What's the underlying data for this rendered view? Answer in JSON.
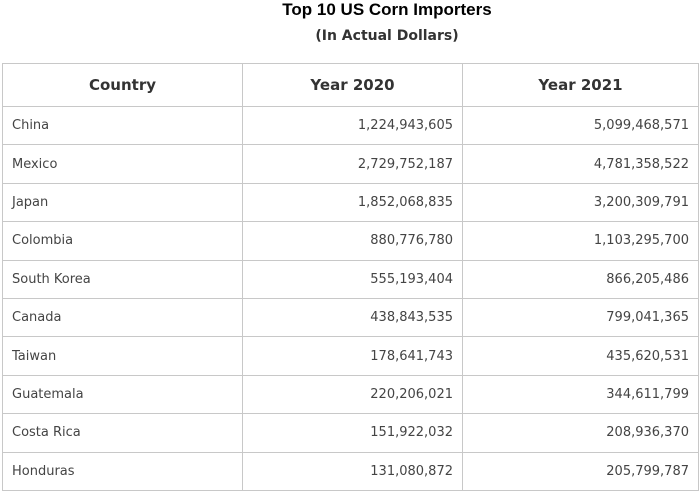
{
  "title": "Top 10 US Corn Importers",
  "subtitle": "(In Actual Dollars)",
  "table": {
    "headers": [
      "Country",
      "Year 2020",
      "Year 2021"
    ],
    "rows": [
      {
        "country": "China",
        "y2020": "1,224,943,605",
        "y2021": "5,099,468,571"
      },
      {
        "country": "Mexico",
        "y2020": "2,729,752,187",
        "y2021": "4,781,358,522"
      },
      {
        "country": "Japan",
        "y2020": "1,852,068,835",
        "y2021": "3,200,309,791"
      },
      {
        "country": "Colombia",
        "y2020": "880,776,780",
        "y2021": "1,103,295,700"
      },
      {
        "country": "South Korea",
        "y2020": "555,193,404",
        "y2021": "866,205,486"
      },
      {
        "country": "Canada",
        "y2020": "438,843,535",
        "y2021": "799,041,365"
      },
      {
        "country": "Taiwan",
        "y2020": "178,641,743",
        "y2021": "435,620,531"
      },
      {
        "country": "Guatemala",
        "y2020": "220,206,021",
        "y2021": "344,611,799"
      },
      {
        "country": "Costa Rica",
        "y2020": "151,922,032",
        "y2021": "208,936,370"
      },
      {
        "country": "Honduras",
        "y2020": "131,080,872",
        "y2021": "205,799,787"
      }
    ]
  }
}
